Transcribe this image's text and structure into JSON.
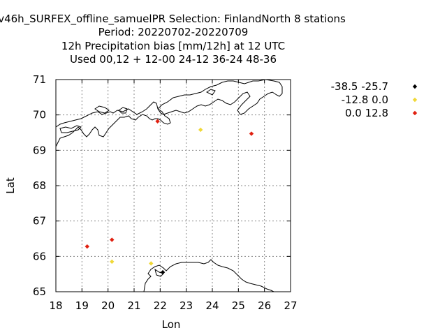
{
  "chart_data": {
    "type": "scatter",
    "title_lines": [
      "v46h_SURFEX_offline_samuelPR   Selection: FinlandNorth      8 stations",
      "Period: 20220702-20220709",
      "12h Precipitation bias [mm/12h] at  12 UTC",
      "Used  00,12  + 12-00 24-12 36-24 48-36"
    ],
    "xlabel": "Lon",
    "ylabel": "Lat",
    "xlim": [
      18,
      27
    ],
    "ylim": [
      65,
      71
    ],
    "xticks": [
      18,
      19,
      20,
      21,
      22,
      23,
      24,
      25,
      26,
      27
    ],
    "yticks": [
      65,
      66,
      67,
      68,
      69,
      70,
      71
    ],
    "grid": true,
    "legend_position": "right",
    "series": [
      {
        "name": "-38.5 -25.7",
        "color": "#000000",
        "points": [
          [
            22.1,
            65.55
          ]
        ]
      },
      {
        "name": "-12.8 0.0",
        "color": "#f0d838",
        "points": [
          [
            23.55,
            69.58
          ],
          [
            20.15,
            65.85
          ],
          [
            21.65,
            65.8
          ]
        ]
      },
      {
        "name": "0.0 12.8",
        "color": "#e02010",
        "points": [
          [
            21.9,
            69.82
          ],
          [
            25.5,
            69.47
          ],
          [
            19.2,
            66.28
          ],
          [
            20.15,
            66.47
          ]
        ]
      }
    ]
  }
}
